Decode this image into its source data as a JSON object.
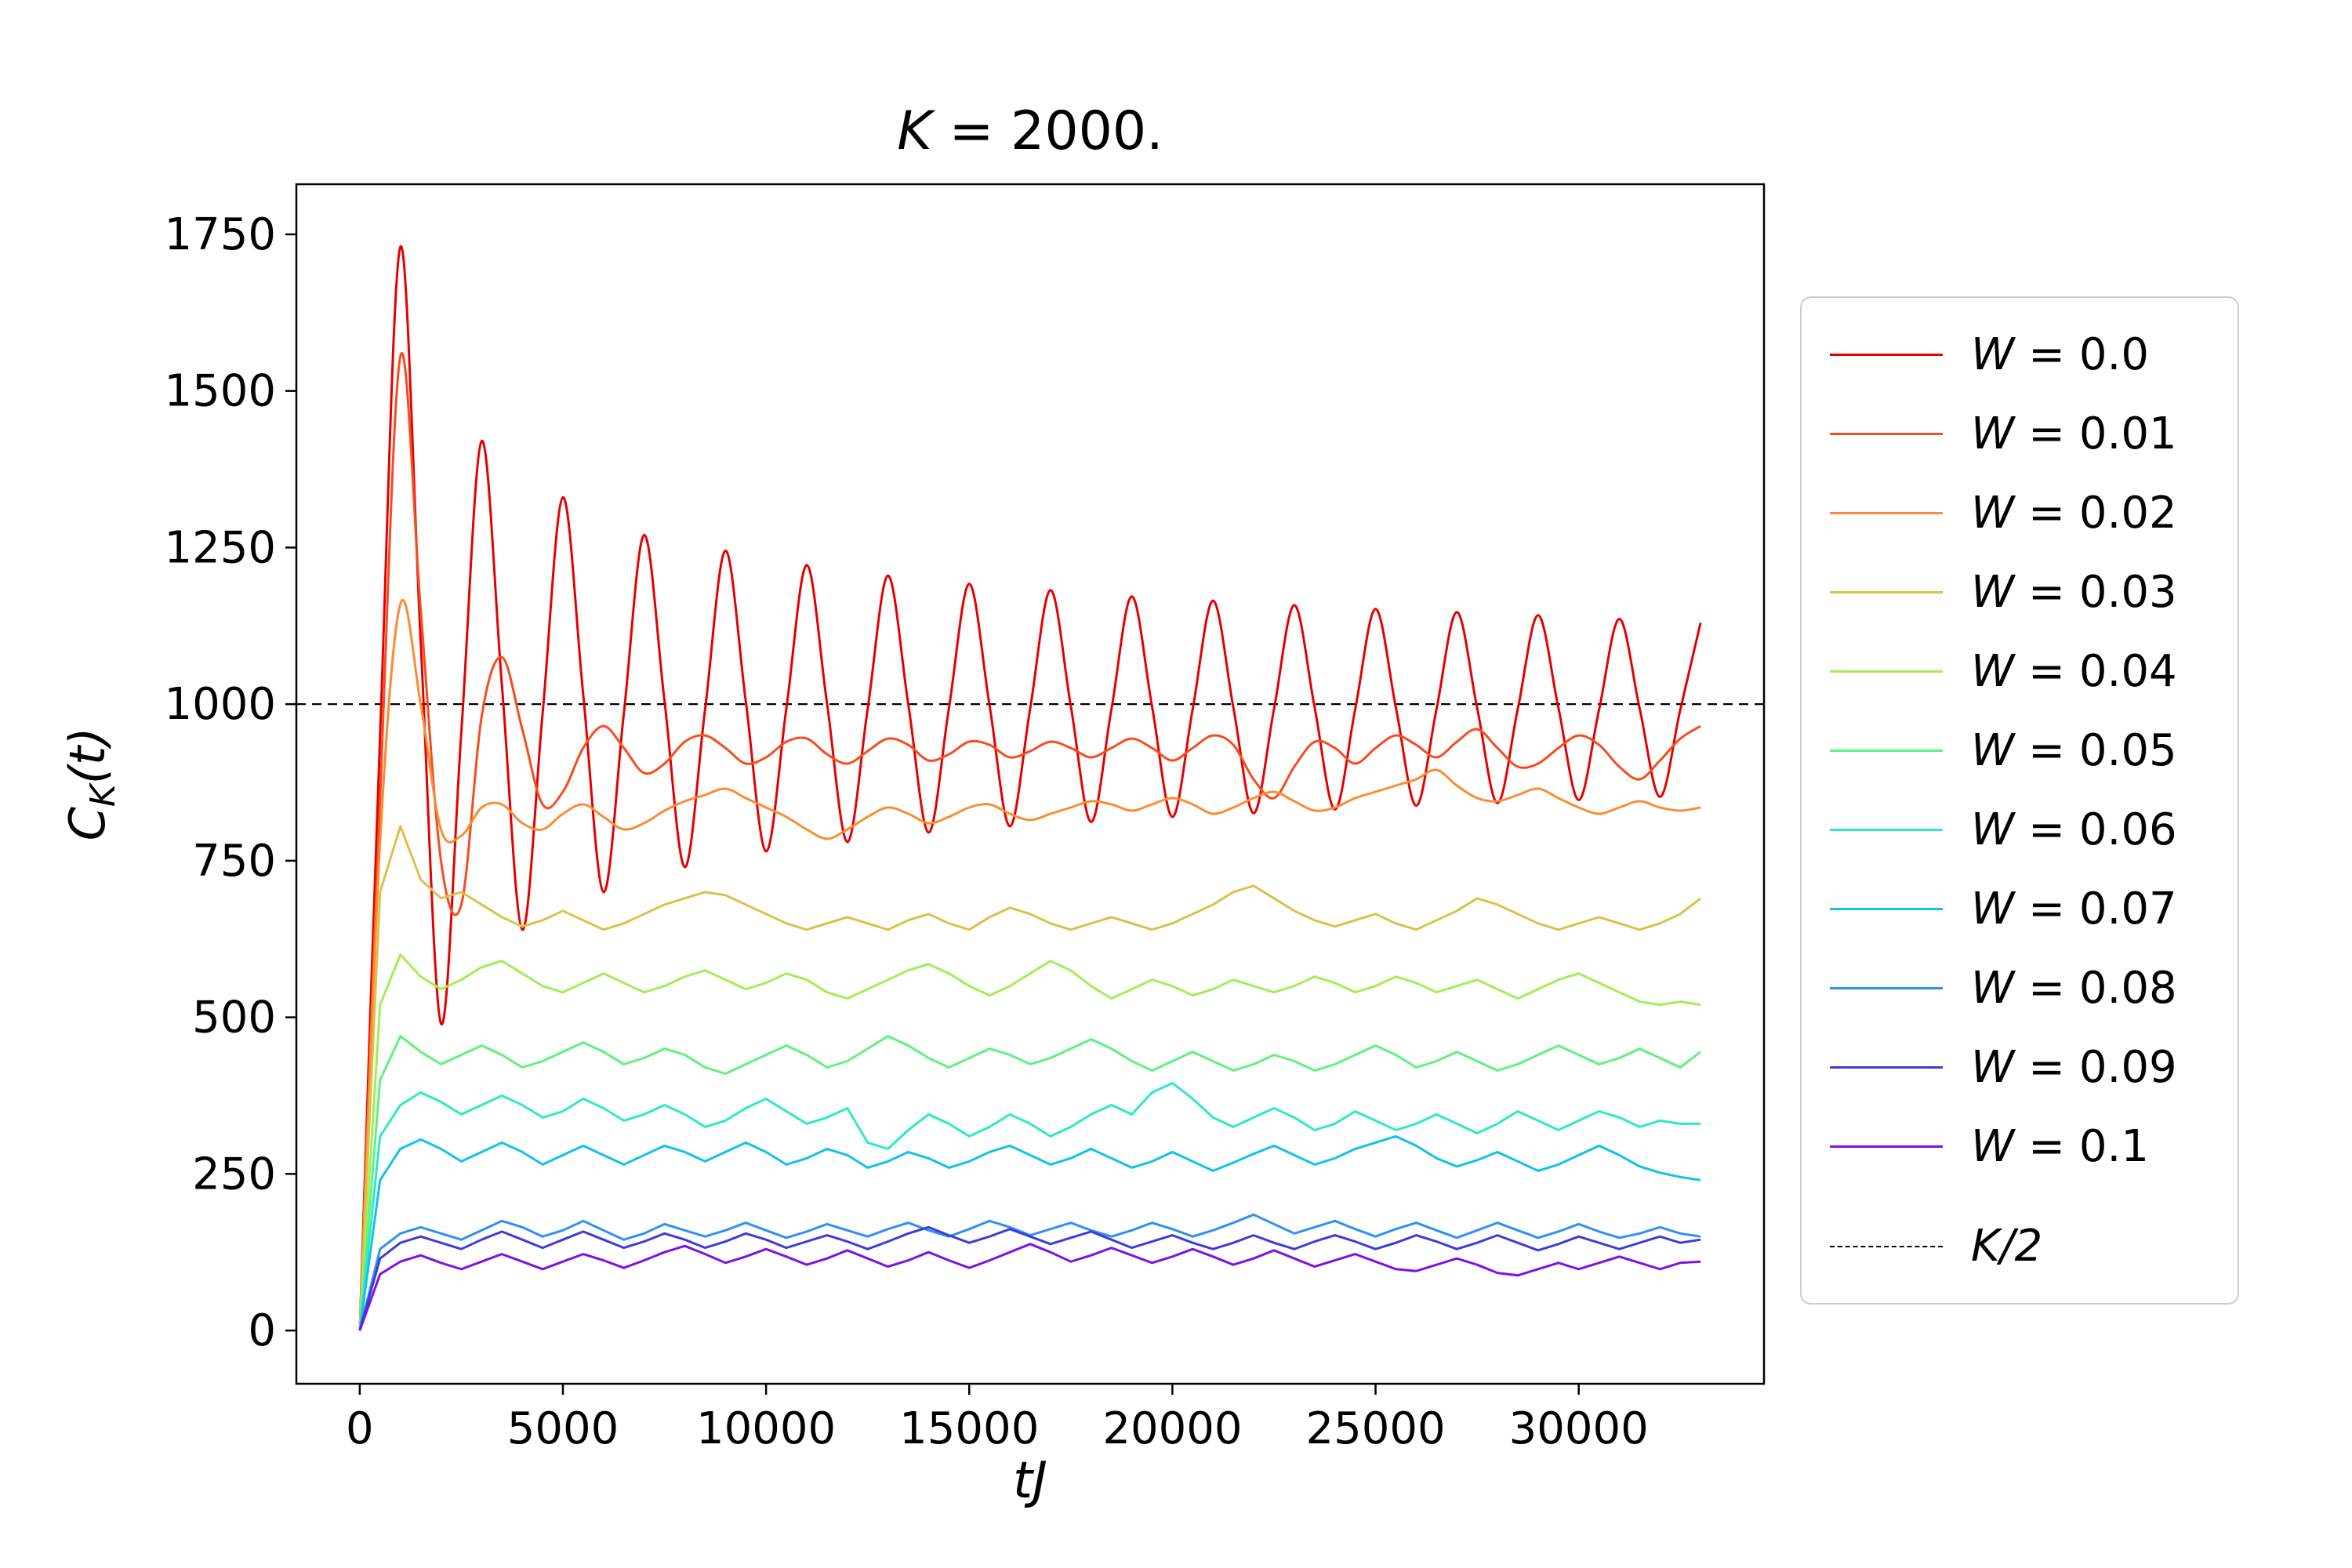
{
  "title": {
    "var": "K",
    "rest": " = 2000."
  },
  "xlabel": {
    "text": "tJ"
  },
  "ylabel": {
    "main": "C",
    "sub": "K",
    "rest": "(t)"
  },
  "chart_data": {
    "type": "line",
    "title": "K = 2000.",
    "xlabel": "tJ",
    "ylabel": "C_K(t)",
    "xlim": [
      -1560,
      34560
    ],
    "ylim": [
      -85,
      1830
    ],
    "xticks": [
      0,
      5000,
      10000,
      15000,
      20000,
      25000,
      30000
    ],
    "yticks": [
      0,
      250,
      500,
      750,
      1000,
      1250,
      1500,
      1750
    ],
    "grid": false,
    "legend_position": "outside right",
    "hline": {
      "y": 1000,
      "label": "K/2",
      "style": "dashed",
      "color": "#000000"
    },
    "x_start": 0,
    "x_step": 500,
    "series": [
      {
        "name": "W = 0.0",
        "color": "#e50000",
        "smooth": true,
        "y": [
          0,
          950,
          1730,
          1100,
          490,
          955,
          1420,
          1030,
          640,
          985,
          1330,
          1015,
          700,
          985,
          1270,
          1005,
          740,
          992,
          1245,
          1005,
          765,
          993,
          1222,
          1001,
          780,
          992,
          1205,
          1000,
          795,
          993,
          1192,
          998,
          805,
          993,
          1182,
          997,
          812,
          992,
          1172,
          996,
          820,
          992,
          1165,
          995,
          826,
          992,
          1158,
          995,
          832,
          992,
          1152,
          995,
          838,
          992,
          1147,
          994,
          842,
          992,
          1142,
          994,
          847,
          991,
          1136,
          993,
          852,
          991,
          1130
        ]
      },
      {
        "name": "W = 0.01",
        "color": "#f64c1e",
        "smooth": true,
        "y": [
          0,
          850,
          1555,
          1150,
          750,
          680,
          980,
          1075,
          960,
          840,
          860,
          930,
          965,
          930,
          890,
          905,
          940,
          950,
          930,
          905,
          915,
          940,
          945,
          920,
          905,
          925,
          945,
          935,
          910,
          920,
          940,
          935,
          915,
          925,
          940,
          930,
          915,
          930,
          945,
          930,
          910,
          930,
          950,
          935,
          880,
          850,
          900,
          940,
          930,
          905,
          930,
          950,
          935,
          915,
          940,
          960,
          930,
          900,
          905,
          930,
          950,
          935,
          900,
          880,
          910,
          945,
          965
        ]
      },
      {
        "name": "W = 0.02",
        "color": "#fb8c33",
        "smooth": true,
        "y": [
          0,
          780,
          1160,
          1000,
          800,
          790,
          835,
          840,
          810,
          800,
          825,
          840,
          820,
          800,
          810,
          830,
          845,
          855,
          865,
          850,
          835,
          820,
          800,
          785,
          800,
          820,
          835,
          825,
          810,
          820,
          835,
          840,
          825,
          815,
          825,
          835,
          845,
          840,
          830,
          840,
          850,
          840,
          825,
          835,
          850,
          860,
          845,
          830,
          835,
          850,
          860,
          870,
          880,
          895,
          870,
          850,
          845,
          855,
          865,
          850,
          835,
          825,
          835,
          845,
          835,
          830,
          835
        ]
      },
      {
        "name": "W = 0.03",
        "color": "#ddc04a",
        "smooth": false,
        "y": [
          0,
          700,
          805,
          720,
          690,
          700,
          680,
          660,
          645,
          655,
          670,
          655,
          640,
          650,
          665,
          680,
          690,
          700,
          695,
          680,
          665,
          650,
          640,
          650,
          660,
          650,
          640,
          655,
          665,
          650,
          640,
          660,
          675,
          665,
          650,
          640,
          650,
          660,
          650,
          640,
          650,
          665,
          680,
          700,
          710,
          690,
          670,
          655,
          645,
          655,
          665,
          650,
          640,
          655,
          670,
          690,
          680,
          665,
          650,
          640,
          650,
          660,
          650,
          640,
          650,
          665,
          690
        ]
      },
      {
        "name": "W = 0.04",
        "color": "#a2ee57",
        "smooth": false,
        "y": [
          0,
          520,
          600,
          565,
          545,
          560,
          580,
          590,
          570,
          550,
          540,
          555,
          570,
          555,
          540,
          550,
          565,
          575,
          560,
          545,
          555,
          570,
          560,
          540,
          530,
          545,
          560,
          575,
          585,
          570,
          550,
          535,
          550,
          570,
          590,
          575,
          550,
          530,
          545,
          560,
          550,
          535,
          545,
          560,
          550,
          540,
          550,
          565,
          555,
          540,
          550,
          565,
          555,
          540,
          550,
          560,
          545,
          530,
          545,
          560,
          570,
          555,
          540,
          525,
          520,
          525,
          520
        ]
      },
      {
        "name": "W = 0.05",
        "color": "#5ff27d",
        "smooth": false,
        "y": [
          0,
          400,
          470,
          445,
          425,
          440,
          455,
          440,
          420,
          430,
          445,
          460,
          445,
          425,
          435,
          450,
          440,
          420,
          410,
          425,
          440,
          455,
          440,
          420,
          430,
          450,
          470,
          455,
          435,
          420,
          435,
          450,
          440,
          425,
          435,
          450,
          465,
          450,
          430,
          415,
          430,
          445,
          430,
          415,
          425,
          440,
          430,
          415,
          425,
          440,
          455,
          440,
          420,
          430,
          445,
          430,
          415,
          425,
          440,
          455,
          440,
          425,
          435,
          450,
          435,
          420,
          445
        ]
      },
      {
        "name": "W = 0.06",
        "color": "#2fe8c8",
        "smooth": false,
        "y": [
          0,
          310,
          360,
          380,
          365,
          345,
          360,
          375,
          360,
          340,
          350,
          370,
          355,
          335,
          345,
          360,
          345,
          325,
          335,
          355,
          370,
          350,
          330,
          340,
          355,
          300,
          290,
          320,
          345,
          330,
          310,
          325,
          345,
          330,
          310,
          325,
          345,
          360,
          345,
          380,
          395,
          370,
          340,
          325,
          340,
          355,
          340,
          320,
          330,
          350,
          335,
          320,
          330,
          345,
          330,
          315,
          330,
          350,
          335,
          320,
          335,
          350,
          340,
          325,
          335,
          330,
          330
        ]
      },
      {
        "name": "W = 0.07",
        "color": "#12c2ea",
        "smooth": false,
        "y": [
          0,
          240,
          290,
          305,
          290,
          270,
          285,
          300,
          285,
          265,
          280,
          295,
          280,
          265,
          280,
          295,
          285,
          270,
          285,
          300,
          285,
          265,
          275,
          290,
          280,
          260,
          270,
          285,
          275,
          260,
          270,
          285,
          295,
          280,
          265,
          275,
          290,
          275,
          260,
          270,
          285,
          270,
          255,
          268,
          282,
          295,
          280,
          265,
          275,
          290,
          300,
          310,
          295,
          275,
          262,
          272,
          285,
          270,
          255,
          265,
          280,
          295,
          280,
          262,
          252,
          245,
          240
        ]
      },
      {
        "name": "W = 0.08",
        "color": "#2e90f5",
        "smooth": false,
        "y": [
          0,
          130,
          155,
          165,
          155,
          145,
          160,
          175,
          165,
          150,
          160,
          175,
          160,
          145,
          155,
          170,
          160,
          150,
          160,
          172,
          160,
          148,
          158,
          170,
          160,
          150,
          162,
          172,
          160,
          150,
          162,
          175,
          165,
          152,
          162,
          172,
          160,
          150,
          160,
          172,
          162,
          150,
          160,
          172,
          185,
          170,
          155,
          165,
          175,
          162,
          150,
          162,
          172,
          160,
          148,
          160,
          172,
          160,
          148,
          158,
          170,
          158,
          148,
          155,
          165,
          155,
          150
        ]
      },
      {
        "name": "W = 0.09",
        "color": "#3c3cd9",
        "smooth": false,
        "y": [
          0,
          115,
          140,
          150,
          140,
          130,
          145,
          158,
          145,
          132,
          145,
          158,
          145,
          132,
          142,
          155,
          145,
          132,
          142,
          155,
          145,
          132,
          142,
          152,
          142,
          130,
          142,
          155,
          165,
          152,
          140,
          150,
          162,
          150,
          138,
          148,
          158,
          145,
          132,
          142,
          152,
          140,
          130,
          140,
          152,
          140,
          130,
          142,
          152,
          142,
          130,
          140,
          152,
          142,
          130,
          140,
          152,
          140,
          128,
          138,
          150,
          140,
          130,
          140,
          150,
          140,
          145
        ]
      },
      {
        "name": "W = 0.1",
        "color": "#7d12e2",
        "smooth": false,
        "y": [
          0,
          90,
          110,
          120,
          108,
          98,
          110,
          122,
          110,
          98,
          110,
          122,
          112,
          100,
          112,
          125,
          135,
          122,
          108,
          118,
          130,
          118,
          105,
          115,
          128,
          115,
          102,
          112,
          125,
          112,
          100,
          112,
          125,
          138,
          125,
          110,
          120,
          132,
          120,
          108,
          118,
          130,
          118,
          105,
          115,
          128,
          115,
          102,
          112,
          122,
          110,
          98,
          95,
          105,
          115,
          105,
          92,
          88,
          98,
          108,
          98,
          108,
          118,
          108,
          98,
          108,
          110
        ]
      }
    ]
  }
}
